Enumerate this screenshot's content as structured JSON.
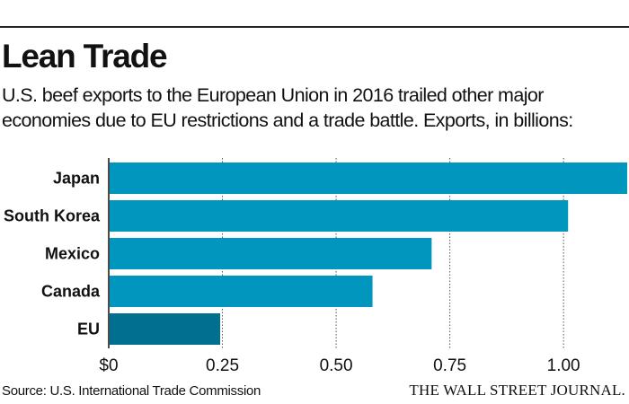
{
  "title": "Lean Trade",
  "subtitle_lines": [
    "U.S. beef exports to the European Union in 2016 trailed other major",
    "economies due to EU restrictions and a trade battle. Exports, in billions:"
  ],
  "source": "Source: U.S. International Trade Commission",
  "logo_text": "THE WALL STREET JOURNAL.",
  "colors": {
    "bar": "#0096be",
    "highlight": "#006f90",
    "grid": "#555555"
  },
  "chart_data": {
    "type": "bar",
    "orientation": "horizontal",
    "categories": [
      "Japan",
      "South Korea",
      "Mexico",
      "Canada",
      "EU"
    ],
    "values": [
      1.14,
      1.01,
      0.71,
      0.58,
      0.245
    ],
    "highlight": "EU",
    "xlim": [
      0,
      1.14
    ],
    "xticks": [
      {
        "value": 0,
        "label": "$0"
      },
      {
        "value": 0.25,
        "label": "0.25"
      },
      {
        "value": 0.5,
        "label": "0.50"
      },
      {
        "value": 0.75,
        "label": "0.75"
      },
      {
        "value": 1.0,
        "label": "1.00"
      }
    ],
    "grid": true,
    "legend": "none"
  }
}
